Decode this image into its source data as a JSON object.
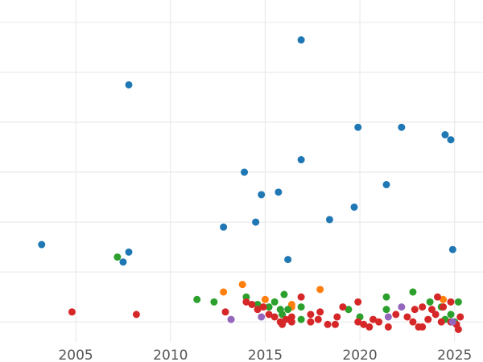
{
  "chart_data": {
    "type": "scatter",
    "title": "",
    "xlabel": "",
    "ylabel": "",
    "xlim": [
      2001,
      2026.5
    ],
    "ylim": [
      0,
      13.7
    ],
    "grid": true,
    "legend": "none",
    "x_ticks": [
      2005,
      2010,
      2015,
      2020,
      2025
    ],
    "x_tick_labels": [
      "2005",
      "2010",
      "2015",
      "2020",
      "2025"
    ],
    "y_gridlines": [
      0.8,
      2.8,
      4.8,
      6.8,
      8.8,
      10.8,
      12.8
    ],
    "y_tick_labels": [],
    "series": [
      {
        "color": "#1f77b4",
        "points": [
          [
            2003.2,
            3.9
          ],
          [
            2007.5,
            3.2
          ],
          [
            2007.8,
            3.6
          ],
          [
            2007.8,
            10.3
          ],
          [
            2012.8,
            4.6
          ],
          [
            2013.9,
            6.8
          ],
          [
            2014.5,
            4.8
          ],
          [
            2014.8,
            5.9
          ],
          [
            2015.7,
            6.0
          ],
          [
            2016.2,
            3.3
          ],
          [
            2016.9,
            7.3
          ],
          [
            2016.9,
            12.1
          ],
          [
            2018.4,
            4.9
          ],
          [
            2019.7,
            5.4
          ],
          [
            2019.9,
            8.6
          ],
          [
            2021.4,
            6.3
          ],
          [
            2022.2,
            8.6
          ],
          [
            2024.5,
            8.3
          ],
          [
            2024.8,
            8.1
          ],
          [
            2024.9,
            3.7
          ]
        ]
      },
      {
        "color": "#ff7f0e",
        "points": [
          [
            2012.8,
            2.0
          ],
          [
            2013.8,
            2.3
          ],
          [
            2015.0,
            1.7
          ],
          [
            2016.4,
            1.5
          ],
          [
            2016.4,
            1.4
          ],
          [
            2017.9,
            2.1
          ],
          [
            2024.4,
            1.7
          ]
        ]
      },
      {
        "color": "#2ca02c",
        "points": [
          [
            2007.2,
            3.4
          ],
          [
            2011.4,
            1.7
          ],
          [
            2012.3,
            1.6
          ],
          [
            2014.0,
            1.8
          ],
          [
            2014.6,
            1.5
          ],
          [
            2015.2,
            1.4
          ],
          [
            2015.5,
            1.6
          ],
          [
            2015.8,
            1.3
          ],
          [
            2015.9,
            1.1
          ],
          [
            2016.0,
            1.9
          ],
          [
            2016.2,
            1.3
          ],
          [
            2016.9,
            1.4
          ],
          [
            2016.9,
            0.9
          ],
          [
            2019.4,
            1.3
          ],
          [
            2020.0,
            1.0
          ],
          [
            2021.4,
            1.8
          ],
          [
            2021.4,
            1.3
          ],
          [
            2022.8,
            2.0
          ],
          [
            2023.7,
            1.6
          ],
          [
            2024.3,
            1.4
          ],
          [
            2024.5,
            0.9
          ],
          [
            2024.8,
            1.1
          ],
          [
            2025.0,
            0.8
          ],
          [
            2025.2,
            1.6
          ]
        ]
      },
      {
        "color": "#d62728",
        "points": [
          [
            2004.8,
            1.2
          ],
          [
            2008.2,
            1.1
          ],
          [
            2012.9,
            1.2
          ],
          [
            2014.0,
            1.6
          ],
          [
            2014.3,
            1.5
          ],
          [
            2014.6,
            1.3
          ],
          [
            2014.9,
            1.4
          ],
          [
            2015.2,
            1.1
          ],
          [
            2015.5,
            1.0
          ],
          [
            2015.8,
            0.8
          ],
          [
            2015.9,
            0.7
          ],
          [
            2016.1,
            0.9
          ],
          [
            2016.4,
            0.8
          ],
          [
            2016.4,
            1.0
          ],
          [
            2016.9,
            1.8
          ],
          [
            2017.4,
            0.8
          ],
          [
            2017.4,
            1.1
          ],
          [
            2017.8,
            0.9
          ],
          [
            2017.9,
            1.2
          ],
          [
            2018.3,
            0.7
          ],
          [
            2018.7,
            0.7
          ],
          [
            2018.8,
            1.0
          ],
          [
            2019.1,
            1.4
          ],
          [
            2019.9,
            0.8
          ],
          [
            2019.9,
            1.6
          ],
          [
            2020.2,
            0.7
          ],
          [
            2020.5,
            0.6
          ],
          [
            2020.7,
            0.9
          ],
          [
            2021.0,
            0.8
          ],
          [
            2021.5,
            0.6
          ],
          [
            2021.9,
            1.1
          ],
          [
            2022.5,
            1.0
          ],
          [
            2022.8,
            0.8
          ],
          [
            2022.9,
            1.3
          ],
          [
            2023.1,
            0.6
          ],
          [
            2023.3,
            1.4
          ],
          [
            2023.3,
            0.6
          ],
          [
            2023.6,
            0.9
          ],
          [
            2023.8,
            1.3
          ],
          [
            2024.0,
            1.1
          ],
          [
            2024.1,
            1.8
          ],
          [
            2024.3,
            0.8
          ],
          [
            2024.4,
            1.4
          ],
          [
            2024.8,
            1.6
          ],
          [
            2024.8,
            0.8
          ],
          [
            2025.1,
            0.7
          ],
          [
            2025.2,
            0.5
          ],
          [
            2025.3,
            1.0
          ]
        ]
      },
      {
        "color": "#9467bd",
        "points": [
          [
            2013.2,
            0.9
          ],
          [
            2014.8,
            1.0
          ],
          [
            2021.5,
            1.0
          ],
          [
            2022.2,
            1.4
          ],
          [
            2024.9,
            0.8
          ]
        ]
      }
    ]
  }
}
